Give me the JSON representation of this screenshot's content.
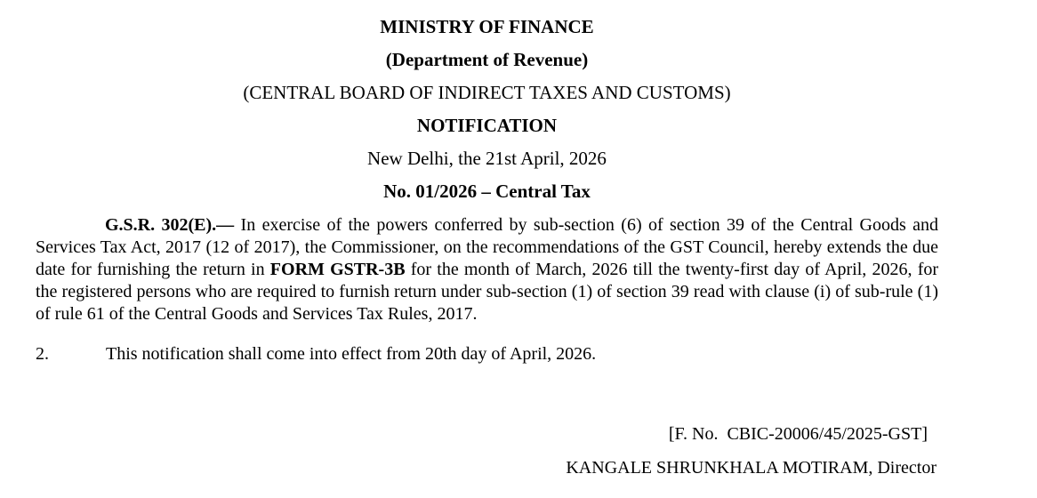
{
  "document": {
    "header": {
      "ministry": "MINISTRY OF FINANCE",
      "department": "(Department of Revenue)",
      "board": "(CENTRAL BOARD OF INDIRECT TAXES AND CUSTOMS)",
      "doc_type": "NOTIFICATION",
      "place_date": "New Delhi, the 21st April, 2026",
      "notification_no": "No. 01/2026 – Central Tax"
    },
    "body": {
      "para1": {
        "lead_bold": "G.S.R. 302(E).—",
        "text_a": " In exercise of the powers conferred by sub-section (6) of section 39 of the Central Goods and Services Tax Act, 2017 (12 of 2017), the Commissioner, on the recommendations of the GST Council, hereby extends the due date for furnishing the return in ",
        "form_bold": "FORM GSTR-3B",
        "text_b": " for the month of March, 2026 till the twenty-first day of April, 2026, for the registered persons who are required to furnish return under sub-section (1) of section 39 read with clause (i) of sub-rule (1) of rule 61 of the Central Goods and Services Tax Rules, 2017."
      },
      "para2": {
        "number": "2.",
        "text": "This notification shall come into effect from 20th day of April, 2026."
      }
    },
    "footer": {
      "file_no": "[F. No.  CBIC-20006/45/2025-GST]",
      "signatory": "KANGALE SHRUNKHALA MOTIRAM, Director"
    },
    "colors": {
      "text": "#000000",
      "background": "#ffffff"
    }
  }
}
